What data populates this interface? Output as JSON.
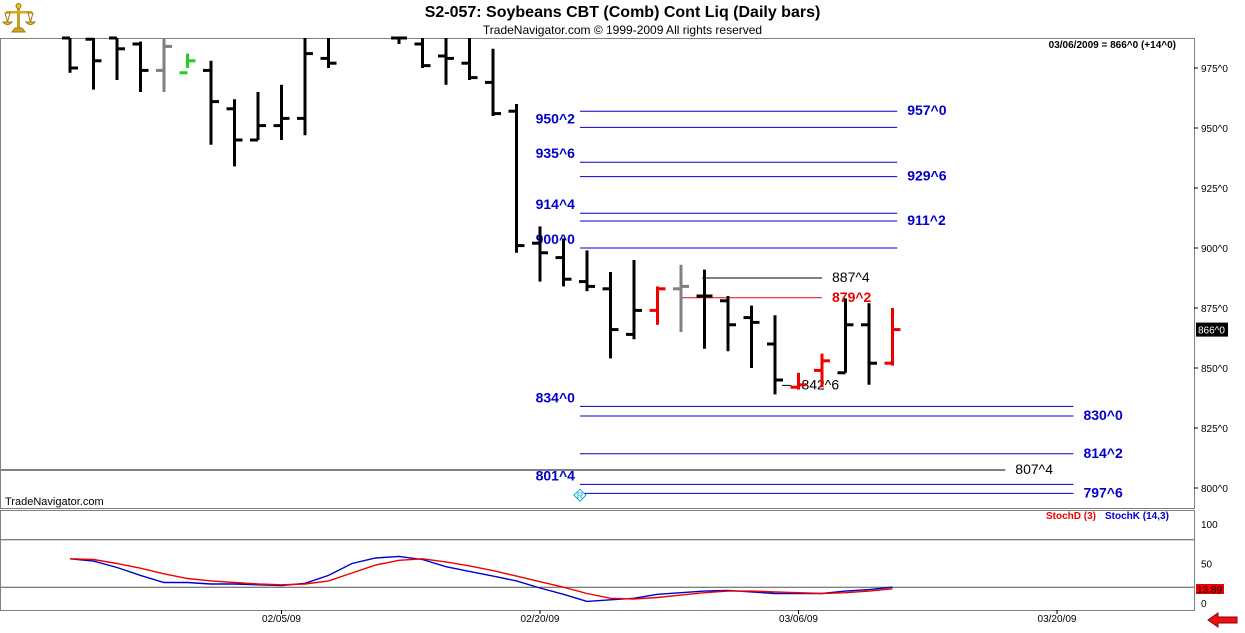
{
  "header": {
    "title": "S2-057:  Soybeans CBT (Comb) Cont Liq  (Daily bars)",
    "copyright": "TradeNavigator.com © 1999-2009 All rights reserved"
  },
  "watermark": "TradeNavigator.com",
  "status": "03/06/2009 = 866^0 (+14^0)",
  "logo_icon": "gold-scale-icon",
  "scroll_icon": "red-left-arrow-icon",
  "colors": {
    "blue": "#0000cc",
    "red": "#ee0000",
    "black": "#000000",
    "gray": "#808080",
    "green": "#22cc22"
  },
  "chart_data": [
    {
      "type": "bar",
      "subtype": "ohlc",
      "ylim": [
        785,
        995
      ],
      "yticks": [
        {
          "v": 975,
          "label": "975^0"
        },
        {
          "v": 950,
          "label": "950^0"
        },
        {
          "v": 925,
          "label": "925^0"
        },
        {
          "v": 900,
          "label": "900^0"
        },
        {
          "v": 875,
          "label": "875^0"
        },
        {
          "v": 850,
          "label": "850^0"
        },
        {
          "v": 825,
          "label": "825^0"
        },
        {
          "v": 800,
          "label": "800^0"
        }
      ],
      "last_price_label": "866^0",
      "last_price": 866,
      "bars": [
        {
          "i": 0,
          "o": 990,
          "h": 995,
          "l": 973,
          "c": 975,
          "color": "black"
        },
        {
          "i": 1,
          "o": 987,
          "h": 995,
          "l": 966,
          "c": 978,
          "color": "black"
        },
        {
          "i": 2,
          "o": 990,
          "h": 995,
          "l": 970,
          "c": 983,
          "color": "black"
        },
        {
          "i": 3,
          "o": 985,
          "h": 986,
          "l": 965,
          "c": 974,
          "color": "black"
        },
        {
          "i": 4,
          "o": 974,
          "h": 993,
          "l": 965,
          "c": 984,
          "color": "gray"
        },
        {
          "i": 5,
          "o": 973,
          "h": 981,
          "l": 975,
          "c": 978,
          "color": "green"
        },
        {
          "i": 6,
          "o": 974,
          "h": 978,
          "l": 943,
          "c": 961,
          "color": "black"
        },
        {
          "i": 7,
          "o": 958,
          "h": 962,
          "l": 934,
          "c": 945,
          "color": "black"
        },
        {
          "i": 8,
          "o": 945,
          "h": 965,
          "l": 945,
          "c": 951,
          "color": "black"
        },
        {
          "i": 9,
          "o": 951,
          "h": 968,
          "l": 945,
          "c": 954,
          "color": "black"
        },
        {
          "i": 10,
          "o": 954,
          "h": 995,
          "l": 947,
          "c": 981,
          "color": "black"
        },
        {
          "i": 11,
          "o": 979,
          "h": 995,
          "l": 975,
          "c": 977,
          "color": "black"
        },
        {
          "i": 14,
          "o": 995,
          "h": 995,
          "l": 985,
          "c": 990,
          "color": "black"
        },
        {
          "i": 15,
          "o": 985,
          "h": 995,
          "l": 975,
          "c": 976,
          "color": "black"
        },
        {
          "i": 16,
          "o": 980,
          "h": 995,
          "l": 968,
          "c": 979,
          "color": "black"
        },
        {
          "i": 17,
          "o": 977,
          "h": 988,
          "l": 970,
          "c": 971,
          "color": "black"
        },
        {
          "i": 18,
          "o": 969,
          "h": 983,
          "l": 955,
          "c": 956,
          "color": "black"
        },
        {
          "i": 19,
          "o": 957,
          "h": 960,
          "l": 898,
          "c": 901,
          "color": "black"
        },
        {
          "i": 20,
          "o": 902,
          "h": 909,
          "l": 886,
          "c": 898,
          "color": "black"
        },
        {
          "i": 21,
          "o": 896,
          "h": 904,
          "l": 884,
          "c": 887,
          "color": "black"
        },
        {
          "i": 22,
          "o": 886,
          "h": 899,
          "l": 882,
          "c": 884,
          "color": "black"
        },
        {
          "i": 23,
          "o": 883,
          "h": 890,
          "l": 854,
          "c": 866,
          "color": "black"
        },
        {
          "i": 24,
          "o": 864,
          "h": 895,
          "l": 862,
          "c": 874,
          "color": "black"
        },
        {
          "i": 25,
          "o": 874,
          "h": 884,
          "l": 868,
          "c": 883,
          "color": "red"
        },
        {
          "i": 26,
          "o": 883,
          "h": 893,
          "l": 865,
          "c": 884,
          "color": "gray"
        },
        {
          "i": 27,
          "o": 880,
          "h": 891,
          "l": 858,
          "c": 880,
          "color": "black"
        },
        {
          "i": 28,
          "o": 878,
          "h": 880,
          "l": 857,
          "c": 868,
          "color": "black"
        },
        {
          "i": 29,
          "o": 871,
          "h": 876,
          "l": 850,
          "c": 869,
          "color": "black"
        },
        {
          "i": 30,
          "o": 860,
          "h": 872,
          "l": 839,
          "c": 845,
          "color": "black"
        },
        {
          "i": 31,
          "o": 842,
          "h": 848,
          "l": 841,
          "c": 843,
          "color": "red"
        },
        {
          "i": 32,
          "o": 849,
          "h": 856,
          "l": 842,
          "c": 853,
          "color": "red"
        },
        {
          "i": 33,
          "o": 848,
          "h": 879,
          "l": 848,
          "c": 868,
          "color": "black"
        },
        {
          "i": 34,
          "o": 868,
          "h": 877,
          "l": 843,
          "c": 852,
          "color": "black"
        },
        {
          "i": 35,
          "o": 852,
          "h": 875,
          "l": 851,
          "c": 866,
          "color": "red"
        }
      ],
      "levels": [
        {
          "price": 957.0,
          "label": "957^0",
          "color": "blue",
          "from": 21.7,
          "to": 35.2,
          "label_side": "right"
        },
        {
          "price": 950.25,
          "label": "950^2",
          "color": "blue",
          "from": 21.7,
          "to": 35.2,
          "label_side": "left"
        },
        {
          "price": 935.75,
          "label": "935^6",
          "color": "blue",
          "from": 21.7,
          "to": 35.2,
          "label_side": "left"
        },
        {
          "price": 929.75,
          "label": "929^6",
          "color": "blue",
          "from": 21.7,
          "to": 35.2,
          "label_side": "right"
        },
        {
          "price": 914.5,
          "label": "914^4",
          "color": "blue",
          "from": 21.7,
          "to": 35.2,
          "label_side": "left"
        },
        {
          "price": 911.25,
          "label": "911^2",
          "color": "blue",
          "from": 21.7,
          "to": 35.2,
          "label_side": "right"
        },
        {
          "price": 900.0,
          "label": "900^0",
          "color": "blue",
          "from": 21.7,
          "to": 35.2,
          "label_side": "left"
        },
        {
          "price": 887.5,
          "label": "887^4",
          "color": "black",
          "from": 26.9,
          "to": 32.0,
          "label_side": "right"
        },
        {
          "price": 879.25,
          "label": "879^2",
          "color": "red",
          "from": 26.0,
          "to": 32.0,
          "label_side": "right"
        },
        {
          "price": 842.75,
          "label": "842^6",
          "color": "black",
          "from": 30.3,
          "to": 30.7,
          "label_side": "right"
        },
        {
          "price": 834.0,
          "label": "834^0",
          "color": "blue",
          "from": 21.7,
          "to": 42.7,
          "label_side": "left"
        },
        {
          "price": 830.0,
          "label": "830^0",
          "color": "blue",
          "from": 21.7,
          "to": 42.7,
          "label_side": "right"
        },
        {
          "price": 814.25,
          "label": "814^2",
          "color": "blue",
          "from": 21.7,
          "to": 42.7,
          "label_side": "right"
        },
        {
          "price": 807.5,
          "label": "807^4",
          "color": "black",
          "from": -1,
          "to": 39.8,
          "label_side": "right"
        },
        {
          "price": 801.5,
          "label": "801^4",
          "color": "blue",
          "from": 21.7,
          "to": 42.7,
          "label_side": "left"
        },
        {
          "price": 797.75,
          "label": "797^6",
          "color": "blue",
          "from": 21.7,
          "to": 42.7,
          "label_side": "right"
        }
      ],
      "marker": {
        "i": 21.7,
        "price": 797,
        "label": "R"
      }
    },
    {
      "type": "line",
      "title": "",
      "legend": [
        {
          "name": "StochD (3)",
          "color": "red"
        },
        {
          "name": "StochK (14,3)",
          "color": "blue"
        }
      ],
      "ylim": [
        0,
        100
      ],
      "yticks": [
        100,
        50,
        0
      ],
      "hlines": [
        80,
        20
      ],
      "value_label": "13.89",
      "x": [
        0,
        1,
        2,
        3,
        4,
        5,
        6,
        7,
        8,
        9,
        10,
        11,
        12,
        13,
        14,
        15,
        16,
        17,
        18,
        19,
        20,
        21,
        22,
        23,
        24,
        25,
        26,
        27,
        28,
        29,
        30,
        31,
        32,
        33,
        34,
        35
      ],
      "series": [
        {
          "name": "StochK (14,3)",
          "color": "blue",
          "values": [
            56,
            53,
            45,
            35,
            26,
            26,
            24,
            24,
            23,
            22,
            25,
            35,
            50,
            57,
            59,
            55,
            46,
            40,
            34,
            28,
            19,
            11,
            2,
            4,
            6,
            11,
            13,
            15,
            16,
            14,
            12,
            12,
            12,
            15,
            17,
            20
          ]
        },
        {
          "name": "StochD (3)",
          "color": "red",
          "values": [
            56,
            55,
            50,
            44,
            37,
            31,
            28,
            26,
            24,
            23,
            24,
            28,
            38,
            48,
            54,
            56,
            52,
            47,
            41,
            34,
            27,
            20,
            12,
            6,
            5,
            7,
            10,
            13,
            15,
            15,
            14,
            13,
            12,
            13,
            15,
            18
          ]
        }
      ],
      "xticks": [
        {
          "i": 9,
          "label": "02/05/09"
        },
        {
          "i": 20,
          "label": "02/20/09"
        },
        {
          "i": 31,
          "label": "03/06/09"
        },
        {
          "i": 42,
          "label": "03/20/09"
        }
      ]
    }
  ]
}
